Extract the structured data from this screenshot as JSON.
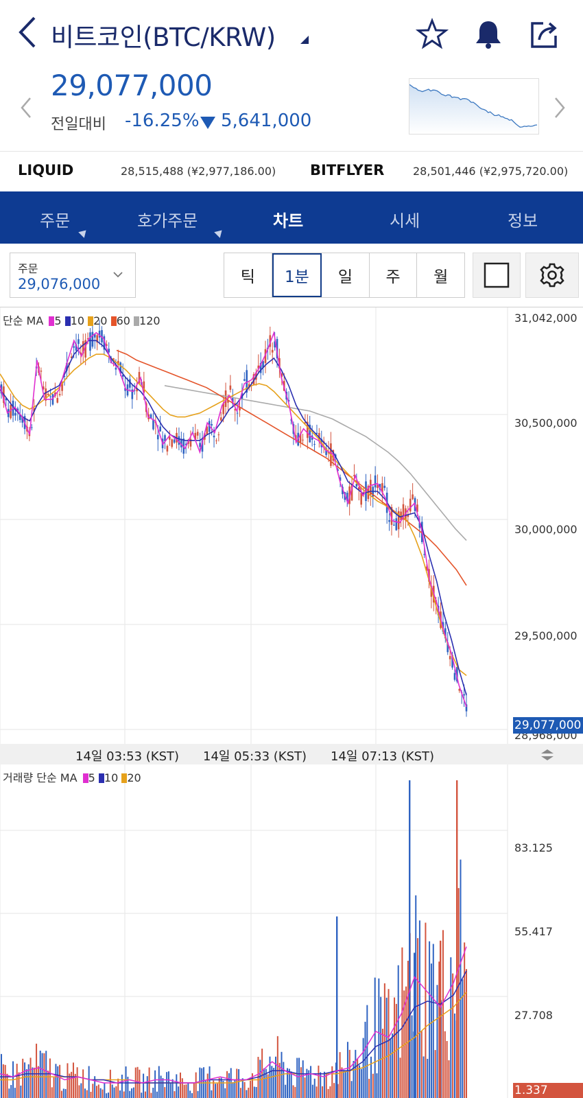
{
  "header": {
    "title": "비트코인(BTC/KRW)",
    "price": "29,077,000",
    "change_label": "전일대비",
    "change_pct": "-16.25%",
    "change_amount": "5,641,000"
  },
  "exchanges": [
    {
      "name": "LIQUID",
      "value": "28,515,488 (¥2,977,186.00)"
    },
    {
      "name": "BITFLYER",
      "value": "28,501,446 (¥2,975,720.00)"
    }
  ],
  "tabs": [
    {
      "label": "주문"
    },
    {
      "label": "호가주문"
    },
    {
      "label": "차트"
    },
    {
      "label": "시세"
    },
    {
      "label": "정보"
    }
  ],
  "order_box": {
    "label": "주문",
    "value": "29,076,000"
  },
  "intervals": [
    "틱",
    "1분",
    "일",
    "주",
    "월"
  ],
  "colors": {
    "accent": "#0e3b92",
    "price_blue": "#1e5ab4",
    "rise_red": "#d3543e",
    "fall_blue": "#2f63c2",
    "ma5": "#e02fd0",
    "ma10": "#2b2fb0",
    "ma20": "#e6a11b",
    "ma60": "#e4542a",
    "ma120": "#aaaaaa"
  },
  "icons": [
    "back-chevron-icon",
    "star-icon",
    "bell-icon",
    "share-icon",
    "settings-gear-icon",
    "square-icon"
  ],
  "price_chart_legend": {
    "prefix": "단순 MA",
    "items": [
      "5",
      "10",
      "20",
      "60",
      "120"
    ]
  },
  "volume_chart_legend": {
    "prefix": "거래량 단순 MA",
    "items": [
      "5",
      "10",
      "20"
    ]
  },
  "price_axis": [
    "31,042,000",
    "30,500,000",
    "30,000,000",
    "29,500,000",
    "28,968,000"
  ],
  "current_price_tag": "29,077,000",
  "volume_axis": [
    "83.125",
    "55.417",
    "27.708"
  ],
  "volume_tag": "1.337",
  "time_labels": [
    "14일 03:53 (KST)",
    "14일 05:33 (KST)",
    "14일 07:13 (KST)"
  ],
  "chart_data": [
    {
      "type": "line",
      "title": "",
      "series_note": "candlestick price with moving averages",
      "ylim": [
        28968000,
        31042000
      ],
      "series": [
        {
          "name": "5",
          "values": [
            30720000,
            30580000,
            30610000,
            30560000,
            30470000,
            30850000,
            30650000,
            30650000,
            30700000,
            30830000,
            30950000,
            30870000,
            30960000,
            30990000,
            30960000,
            30840000,
            30810000,
            30700000,
            30690000,
            30760000,
            30560000,
            30540000,
            30420000,
            30470000,
            30440000,
            30400000,
            30480000,
            30380000,
            30530000,
            30480000,
            30620000,
            30670000,
            30590000,
            30730000,
            30750000,
            30810000,
            30890000,
            30990000,
            30760000,
            30630000,
            30430000,
            30500000,
            30460000,
            30440000,
            30390000,
            30370000,
            30220000,
            30120000,
            30260000,
            30160000,
            30210000,
            30220000,
            30150000,
            30030000,
            30020000,
            30080000,
            30120000,
            29980000,
            29730000,
            29610000,
            29460000,
            29350000,
            29190000,
            29080000
          ]
        },
        {
          "name": "10",
          "values": [
            30700000,
            30650000,
            30600000,
            30560000,
            30540000,
            30620000,
            30680000,
            30700000,
            30720000,
            30800000,
            30880000,
            30920000,
            30950000,
            30950000,
            30920000,
            30860000,
            30810000,
            30760000,
            30720000,
            30690000,
            30640000,
            30570000,
            30510000,
            30470000,
            30450000,
            30440000,
            30440000,
            30440000,
            30470000,
            30490000,
            30540000,
            30600000,
            30630000,
            30680000,
            30730000,
            30790000,
            30830000,
            30860000,
            30800000,
            30720000,
            30620000,
            30550000,
            30500000,
            30460000,
            30420000,
            30380000,
            30310000,
            30230000,
            30200000,
            30170000,
            30180000,
            30180000,
            30140000,
            30080000,
            30050000,
            30060000,
            30070000,
            30000000,
            29850000,
            29720000,
            29550000,
            29420000,
            29270000,
            29140000
          ]
        },
        {
          "name": "20",
          "values": [
            30780000,
            30720000,
            30660000,
            30620000,
            30600000,
            30620000,
            30650000,
            30680000,
            30710000,
            30760000,
            30800000,
            30830000,
            30860000,
            30880000,
            30880000,
            30860000,
            30830000,
            30800000,
            30760000,
            30720000,
            30680000,
            30640000,
            30600000,
            30570000,
            30560000,
            30560000,
            30570000,
            30580000,
            30600000,
            30620000,
            30640000,
            30660000,
            30680000,
            30700000,
            30720000,
            30730000,
            30720000,
            30690000,
            30650000,
            30610000,
            30570000,
            30530000,
            30490000,
            30450000,
            30400000,
            30350000,
            30310000,
            30270000,
            30230000,
            30190000,
            30160000,
            30130000,
            30110000,
            30080000,
            30060000,
            30030000,
            29950000,
            29850000,
            29720000,
            29580000,
            29450000,
            29350000,
            29270000,
            29240000
          ]
        },
        {
          "name": "60",
          "values": [
            30900000,
            30880000,
            30850000,
            30830000,
            30810000,
            30790000,
            30770000,
            30750000,
            30730000,
            30710000,
            30680000,
            30650000,
            30620000,
            30590000,
            30560000,
            30530000,
            30500000,
            30470000,
            30440000,
            30410000,
            30380000,
            30350000,
            30310000,
            30270000,
            30230000,
            30190000,
            30150000,
            30110000,
            30070000,
            30030000,
            29990000,
            29950000,
            29900000,
            29840000,
            29780000,
            29700000
          ]
        },
        {
          "name": "120",
          "values": [
            30720000,
            30710000,
            30700000,
            30690000,
            30680000,
            30670000,
            30660000,
            30650000,
            30640000,
            30630000,
            30620000,
            30610000,
            30600000,
            30590000,
            30570000,
            30550000,
            30520000,
            30490000,
            30460000,
            30420000,
            30380000,
            30330000,
            30270000,
            30200000,
            30130000,
            30060000,
            29990000,
            29930000
          ]
        }
      ]
    },
    {
      "type": "bar",
      "title": "",
      "ylim": [
        0,
        110
      ],
      "series": [
        {
          "name": "5",
          "values": [
            8,
            7,
            9,
            10,
            8,
            6,
            7,
            6,
            5,
            5,
            6,
            5,
            6,
            6,
            5,
            5,
            6,
            7,
            6,
            6,
            8,
            12,
            9,
            7,
            8,
            7,
            9,
            10,
            15,
            22,
            20,
            28,
            40,
            35,
            30,
            38,
            50
          ]
        },
        {
          "name": "10",
          "values": [
            7,
            7,
            8,
            8,
            8,
            7,
            7,
            6,
            6,
            5,
            5,
            5,
            5,
            5,
            5,
            5,
            6,
            6,
            6,
            6,
            7,
            9,
            9,
            8,
            8,
            8,
            9,
            9,
            12,
            17,
            19,
            23,
            30,
            32,
            31,
            34,
            42
          ]
        },
        {
          "name": "20",
          "values": [
            6,
            6,
            7,
            7,
            7,
            7,
            7,
            6,
            6,
            6,
            6,
            5,
            5,
            5,
            5,
            5,
            5,
            5,
            5,
            6,
            6,
            7,
            8,
            8,
            8,
            8,
            8,
            9,
            10,
            12,
            14,
            17,
            20,
            24,
            27,
            30,
            35
          ]
        }
      ]
    }
  ]
}
